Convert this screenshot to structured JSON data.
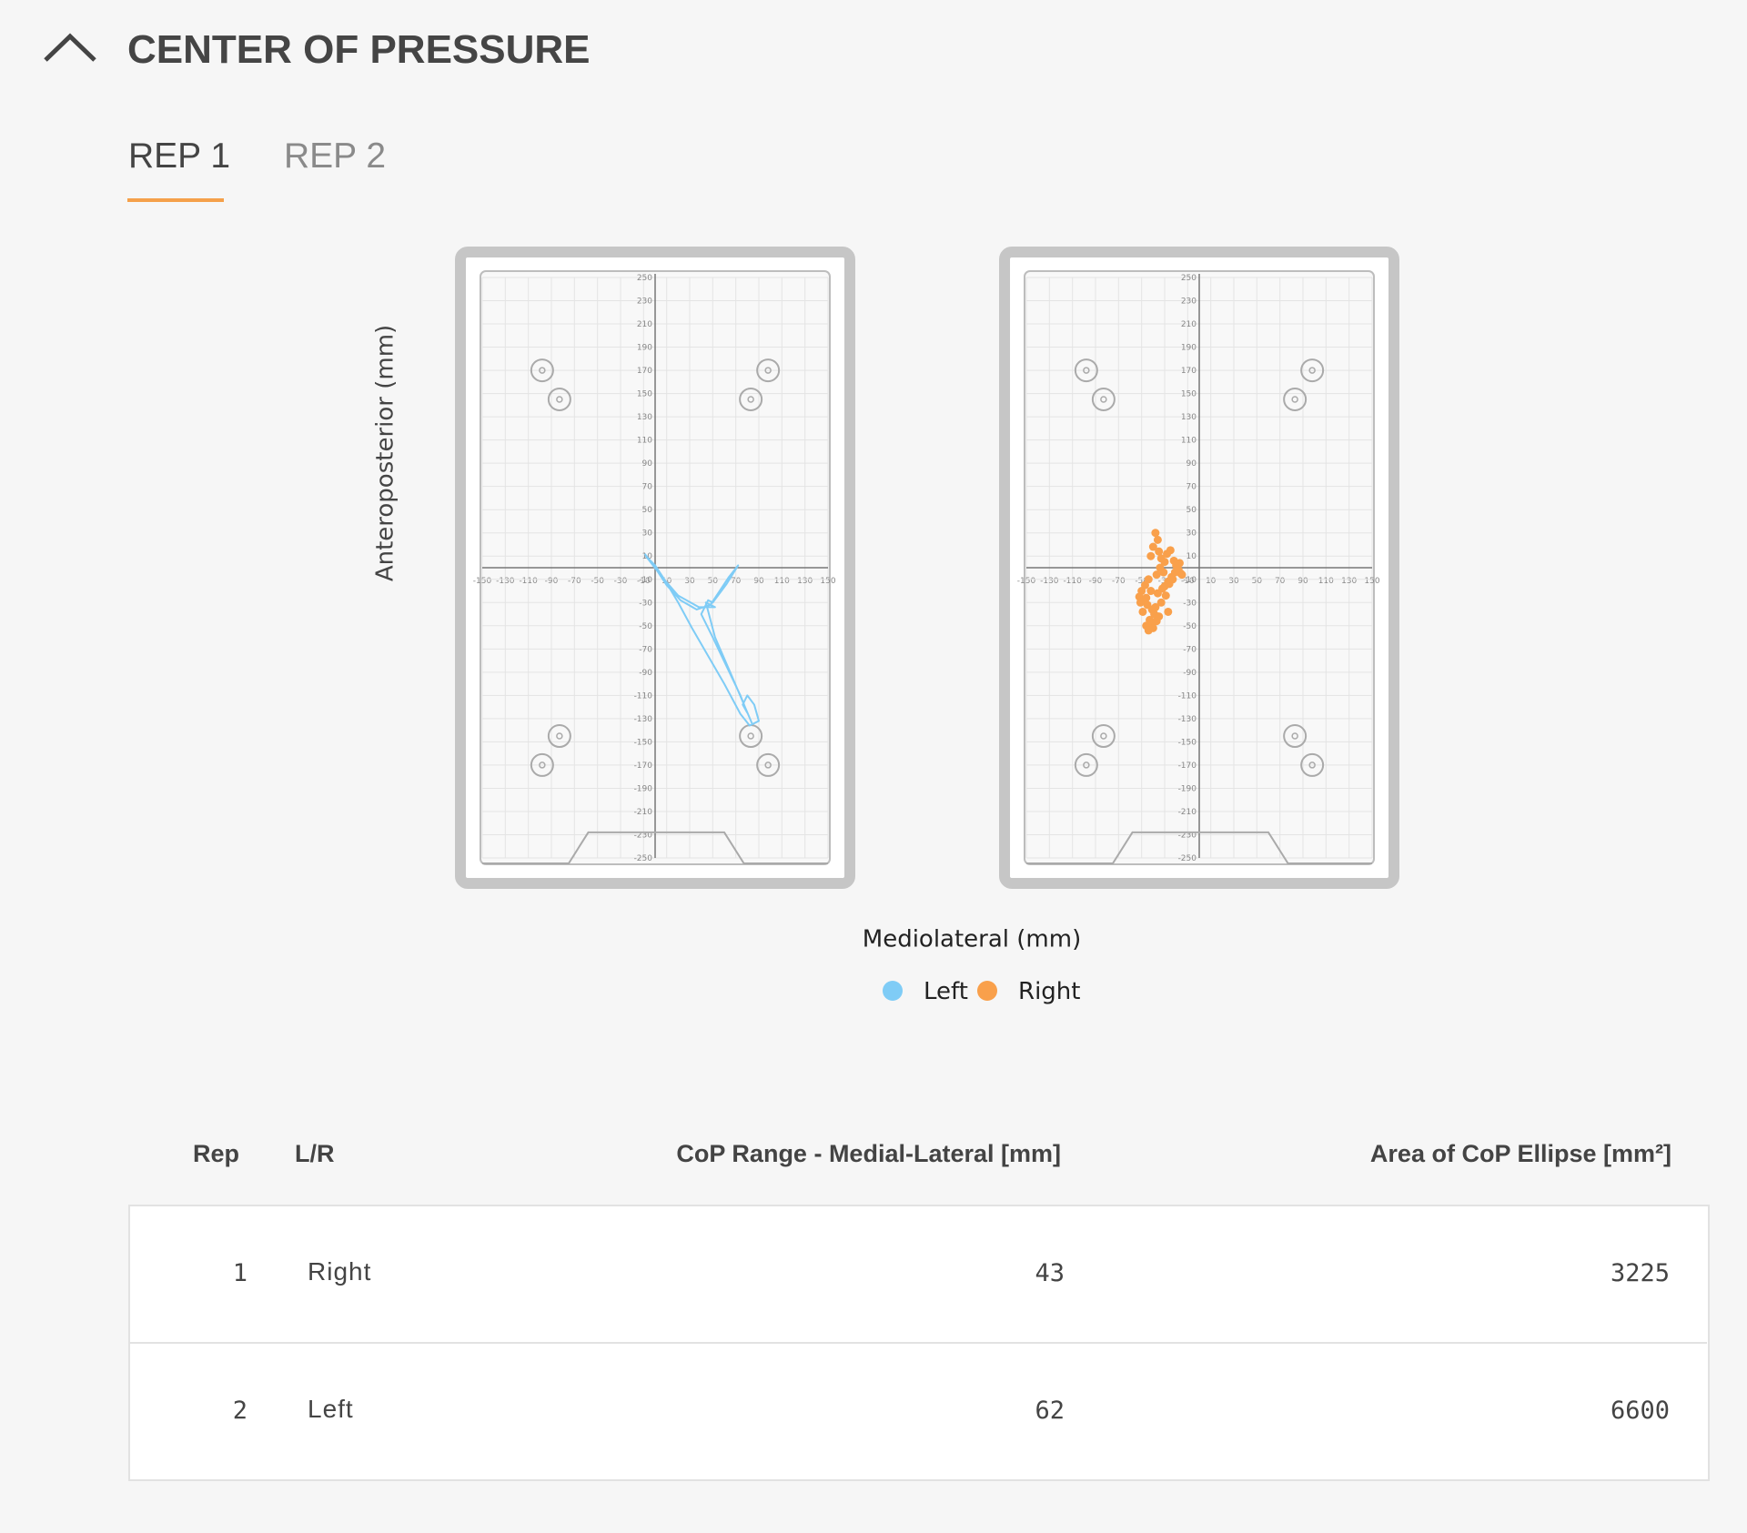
{
  "header": {
    "title": "CENTER OF PRESSURE",
    "tabs": [
      "REP 1",
      "REP 2"
    ]
  },
  "chart_data": [
    {
      "type": "line",
      "xlabel": "Mediolateral (mm)",
      "ylabel": "Anteroposterior (mm)",
      "xlim": [
        -150,
        150
      ],
      "ylim": [
        -250,
        250
      ],
      "xticks": [
        -150,
        -130,
        -110,
        -90,
        -70,
        -50,
        -30,
        -10,
        10,
        30,
        50,
        70,
        90,
        110,
        130,
        150
      ],
      "yticks": [
        250,
        230,
        210,
        190,
        170,
        150,
        130,
        110,
        90,
        70,
        50,
        30,
        10,
        -10,
        -30,
        -50,
        -70,
        -90,
        -110,
        -130,
        -150,
        -170,
        -190,
        -210,
        -230,
        -250
      ],
      "grid": true,
      "series": [
        {
          "name": "Left",
          "color": "#7fccf6",
          "x": [
            -9,
            0,
            10,
            22,
            36,
            48,
            56,
            64,
            72,
            62,
            50,
            46,
            40,
            50,
            62,
            74,
            80,
            76,
            80,
            86,
            90,
            82,
            74,
            60,
            46,
            32,
            20,
            8,
            0,
            -8,
            6,
            20,
            38,
            52,
            44,
            52,
            66,
            78,
            84
          ],
          "values": [
            12,
            0,
            -15,
            -28,
            -36,
            -32,
            -20,
            -8,
            2,
            -14,
            -30,
            -28,
            -40,
            -60,
            -85,
            -110,
            -125,
            -118,
            -110,
            -118,
            -132,
            -136,
            -126,
            -100,
            -76,
            -52,
            -30,
            -10,
            2,
            10,
            -8,
            -24,
            -34,
            -34,
            -30,
            -60,
            -92,
            -120,
            -134
          ]
        }
      ]
    },
    {
      "type": "scatter",
      "xlim": [
        -150,
        150
      ],
      "ylim": [
        -250,
        250
      ],
      "xticks": [
        -150,
        -130,
        -110,
        -90,
        -70,
        -50,
        -30,
        -10,
        10,
        30,
        50,
        70,
        90,
        110,
        130,
        150
      ],
      "yticks": [
        250,
        230,
        210,
        190,
        170,
        150,
        130,
        110,
        90,
        70,
        50,
        30,
        10,
        -10,
        -30,
        -50,
        -70,
        -90,
        -110,
        -130,
        -150,
        -170,
        -190,
        -210,
        -230,
        -250
      ],
      "grid": true,
      "series": [
        {
          "name": "Right",
          "color": "#f9a04b",
          "x": [
            -38,
            -36,
            -40,
            -35,
            -42,
            -33,
            -30,
            -28,
            -25,
            -22,
            -20,
            -18,
            -16,
            -24,
            -27,
            -31,
            -34,
            -37,
            -44,
            -47,
            -50,
            -52,
            -48,
            -45,
            -41,
            -39,
            -43,
            -46,
            -49,
            -51,
            -36,
            -32,
            -29,
            -26,
            -23,
            -21,
            -19,
            -15,
            -17,
            -33,
            -38,
            -41,
            -44,
            -40,
            -37,
            -35,
            -42,
            -46,
            -30,
            -27
          ],
          "values": [
            30,
            24,
            18,
            14,
            10,
            8,
            5,
            12,
            15,
            6,
            2,
            -2,
            -5,
            -8,
            -12,
            -4,
            0,
            -6,
            -10,
            -15,
            -20,
            -25,
            -28,
            -32,
            -36,
            -40,
            -45,
            -50,
            -38,
            -30,
            -22,
            -18,
            -24,
            -14,
            -10,
            -4,
            0,
            -6,
            4,
            -30,
            -34,
            -48,
            -54,
            -52,
            -46,
            -42,
            -20,
            -26,
            -16,
            -38
          ]
        }
      ]
    }
  ],
  "table": {
    "columns": [
      "Rep",
      "L/R",
      "CoP Range - Medial-Lateral [mm]",
      "Area of CoP Ellipse [mm²]"
    ],
    "rows": [
      [
        1,
        "Right",
        43,
        3225
      ],
      [
        2,
        "Left",
        62,
        6600
      ]
    ]
  }
}
